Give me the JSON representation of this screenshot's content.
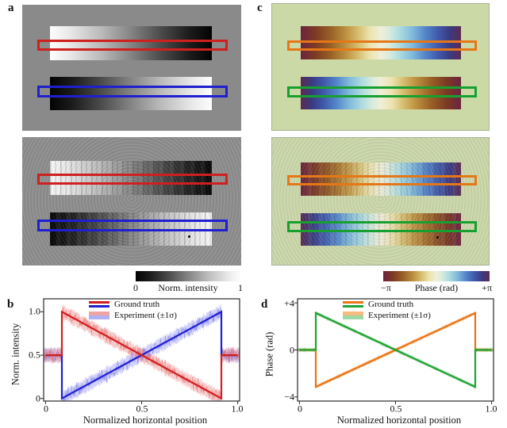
{
  "figure": {
    "panels": {
      "a": {
        "label": "a"
      },
      "b": {
        "label": "b"
      },
      "c": {
        "label": "c"
      },
      "d": {
        "label": "d"
      }
    },
    "colorbars": {
      "intensity": {
        "min": "0",
        "title": "Norm. intensity",
        "max": "1"
      },
      "phase": {
        "min": "−π",
        "title": "Phase (rad)",
        "max": "+π"
      }
    }
  },
  "colors": {
    "panel_a_bg": "#8a8a8a",
    "panel_c_bg": "#cbd9a7",
    "roi_red": "#d01f1f",
    "roi_blue": "#1f1fd0",
    "roi_orange": "#e57717",
    "roi_green": "#17a02f"
  },
  "chart_data": [
    {
      "panel": "b",
      "type": "line",
      "xlabel": "Normalized horizontal position",
      "ylabel": "Norm. intensity",
      "xlim": [
        -0.01,
        1.01
      ],
      "ylim": [
        -0.03,
        1.15
      ],
      "xticks": [
        {
          "v": 0,
          "label": "0"
        },
        {
          "v": 0.5,
          "label": "0.5"
        },
        {
          "v": 1,
          "label": "1.0"
        }
      ],
      "yticks": [
        {
          "v": 1,
          "label": "1.0"
        },
        {
          "v": 0.5,
          "label": "0.5"
        },
        {
          "v": 0,
          "label": "0"
        }
      ],
      "legend": [
        {
          "label": "Ground truth",
          "colors": [
            "#d01f1f",
            "#1f1fd0"
          ],
          "style": "lines"
        },
        {
          "label": "Experiment (±1σ)",
          "colors": [
            "rgba(235,140,140,0.8)",
            "rgba(150,150,240,0.75)"
          ],
          "style": "bands"
        }
      ],
      "series": [
        {
          "name": "ground-truth-blue",
          "color": "#1f1fd0",
          "band_color": "rgba(140,140,240,0.40)",
          "trace_color": "rgba(120,120,235,0.60)",
          "points": [
            [
              0,
              0.5
            ],
            [
              0.085,
              0.5
            ],
            [
              0.085,
              0.0
            ],
            [
              0.915,
              1.0
            ],
            [
              0.915,
              0.5
            ],
            [
              1.0,
              0.5
            ]
          ]
        },
        {
          "name": "ground-truth-red",
          "color": "#d01f1f",
          "band_color": "rgba(235,130,130,0.42)",
          "trace_color": "rgba(230,105,105,0.62)",
          "points": [
            [
              0,
              0.5
            ],
            [
              0.085,
              0.5
            ],
            [
              0.085,
              1.0
            ],
            [
              0.915,
              0.0
            ],
            [
              0.915,
              0.5
            ],
            [
              1.0,
              0.5
            ]
          ]
        }
      ],
      "noise": {
        "trace_amp": 0.11,
        "band_base": 0.05,
        "band_var": 0.05
      }
    },
    {
      "panel": "d",
      "type": "line",
      "xlabel": "Normalized horizontal position",
      "ylabel": "Phase (rad)",
      "xlim": [
        -0.01,
        1.01
      ],
      "ylim": [
        -4.35,
        4.35
      ],
      "xticks": [
        {
          "v": 0,
          "label": "0"
        },
        {
          "v": 0.5,
          "label": "0.5"
        },
        {
          "v": 1,
          "label": "1.0"
        }
      ],
      "yticks": [
        {
          "v": 4,
          "label": "+4"
        },
        {
          "v": 0,
          "label": "0"
        },
        {
          "v": -4,
          "label": "−4"
        }
      ],
      "legend": [
        {
          "label": "Ground truth",
          "colors": [
            "#e87416",
            "#1fa332"
          ],
          "style": "lines"
        },
        {
          "label": "Experiment (±1σ)",
          "colors": [
            "rgba(245,175,105,0.85)",
            "rgba(140,210,150,0.85)"
          ],
          "style": "bands"
        }
      ],
      "series": [
        {
          "name": "ground-truth-orange",
          "color": "#e87416",
          "band_color": "rgba(245,165,90,0.50)",
          "trace_color": "rgba(240,150,80,0.65)",
          "points": [
            [
              0,
              0
            ],
            [
              0.085,
              0
            ],
            [
              0.085,
              -3.1416
            ],
            [
              0.915,
              3.1416
            ],
            [
              0.915,
              0
            ],
            [
              1.0,
              0
            ]
          ]
        },
        {
          "name": "ground-truth-green",
          "color": "#1fa332",
          "band_color": "rgba(130,205,140,0.50)",
          "trace_color": "rgba(90,190,110,0.65)",
          "points": [
            [
              0,
              0
            ],
            [
              0.085,
              0
            ],
            [
              0.085,
              3.1416
            ],
            [
              0.915,
              -3.1416
            ],
            [
              0.915,
              0
            ],
            [
              1.0,
              0
            ]
          ]
        }
      ],
      "noise": {
        "trace_amp": 0.13,
        "band_base": 0.1,
        "band_var": 0.1
      }
    }
  ]
}
